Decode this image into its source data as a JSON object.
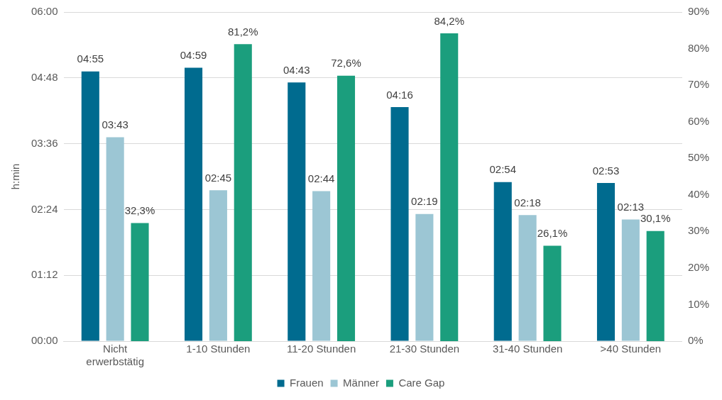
{
  "chart_data": {
    "type": "bar",
    "ylabel": "h:min",
    "categories": [
      "Nicht erwerbstätig",
      "1-10 Stunden",
      "11-20 Stunden",
      "21-30 Stunden",
      "31-40 Stunden",
      ">40 Stunden"
    ],
    "series": [
      {
        "name": "Frauen",
        "color": "#006b8f",
        "values": [
          295,
          299,
          283,
          256,
          174,
          173
        ],
        "value_labels": [
          "04:55",
          "04:59",
          "04:43",
          "04:16",
          "02:54",
          "02:53"
        ]
      },
      {
        "name": "Männer",
        "color": "#9cc6d4",
        "values": [
          223,
          165,
          164,
          139,
          138,
          133
        ],
        "value_labels": [
          "03:43",
          "02:45",
          "02:44",
          "02:19",
          "02:18",
          "02:13"
        ]
      },
      {
        "name": "Care Gap",
        "color": "#1b9e7d",
        "axis": "y2",
        "values": [
          32.3,
          81.2,
          72.6,
          84.2,
          26.1,
          30.1
        ],
        "value_labels": [
          "32,3%",
          "81,2%",
          "72,6%",
          "84,2%",
          "26,1%",
          "30,1%"
        ]
      }
    ],
    "ylim": [
      0,
      360
    ],
    "yticks": [
      {
        "value": 0,
        "label": "00:00"
      },
      {
        "value": 72,
        "label": "01:12"
      },
      {
        "value": 144,
        "label": "02:24"
      },
      {
        "value": 216,
        "label": "03:36"
      },
      {
        "value": 288,
        "label": "04:48"
      },
      {
        "value": 360,
        "label": "06:00"
      }
    ],
    "y2lim": [
      0,
      90
    ],
    "y2ticks": [
      {
        "value": 0,
        "label": "0%"
      },
      {
        "value": 10,
        "label": "10%"
      },
      {
        "value": 20,
        "label": "20%"
      },
      {
        "value": 30,
        "label": "30%"
      },
      {
        "value": 40,
        "label": "40%"
      },
      {
        "value": 50,
        "label": "50%"
      },
      {
        "value": 60,
        "label": "60%"
      },
      {
        "value": 70,
        "label": "70%"
      },
      {
        "value": 80,
        "label": "80%"
      },
      {
        "value": 90,
        "label": "90%"
      }
    ],
    "grid": "y",
    "legend": "bottom"
  }
}
